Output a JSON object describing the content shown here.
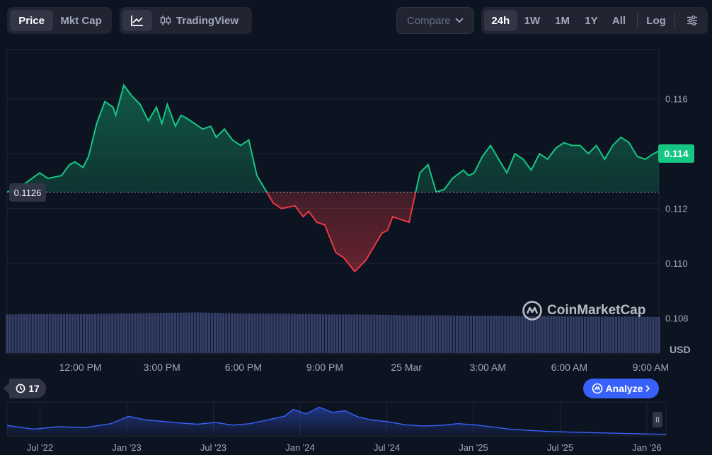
{
  "toolbar": {
    "price_label": "Price",
    "mktcap_label": "Mkt Cap",
    "tradingview_label": "TradingView",
    "compare_label": "Compare",
    "ranges": [
      "24h",
      "1W",
      "1M",
      "1Y",
      "All"
    ],
    "active_range": "24h",
    "log_label": "Log"
  },
  "colors": {
    "background": "#0d1421",
    "up": "#16c784",
    "down": "#ea3943",
    "volume": "#3c4674",
    "overview": "#3861fb"
  },
  "labels": {
    "last_price": "0.114",
    "open_price": "0.1126",
    "currency": "USD",
    "brand": "CoinMarketCap",
    "history_count": "17",
    "analyze": "Analyze"
  },
  "icons": {
    "line_chart": "line-chart-icon",
    "candles": "candlestick-icon",
    "settings": "sliders-icon",
    "history": "history-icon",
    "brand": "coinmarketcap-logo-icon",
    "analyze": "analyze-icon"
  },
  "chart_data": [
    {
      "type": "area",
      "title": "",
      "ylabel": "USD",
      "ylim": [
        0.1067,
        0.1178
      ],
      "yticks": [
        0.108,
        0.11,
        0.112,
        0.114,
        0.116
      ],
      "ytick_labels": [
        "0.108",
        "0.110",
        "0.112",
        "0.114",
        "0.116"
      ],
      "baseline": 0.1126,
      "xlim": [
        0,
        24
      ],
      "xticks": [
        2.7,
        5.7,
        8.7,
        11.7,
        14.7,
        17.7,
        20.7,
        23.7
      ],
      "xtick_labels": [
        "12:00 PM",
        "3:00 PM",
        "6:00 PM",
        "9:00 PM",
        "25 Mar",
        "3:00 AM",
        "6:00 AM",
        "9:00 AM"
      ],
      "grid": true,
      "series": [
        {
          "x": [
            0,
            0.5,
            1.2,
            1.5,
            2.0,
            2.3,
            2.5,
            2.8,
            3.0,
            3.3,
            3.6,
            3.9,
            4.0,
            4.3,
            4.6,
            4.9,
            5.2,
            5.5,
            5.7,
            5.9,
            6.2,
            6.4,
            6.6,
            6.9,
            7.2,
            7.5,
            7.7,
            8.0,
            8.3,
            8.6,
            8.9,
            9.2,
            9.5,
            9.8,
            10.1,
            10.6,
            10.9,
            11.1,
            11.4,
            11.7,
            12.1,
            12.4,
            12.8,
            13.2,
            13.5,
            13.8,
            14.0,
            14.2,
            14.5,
            14.8,
            15.2,
            15.5,
            15.8,
            16.1,
            16.4,
            16.8,
            17.0,
            17.2,
            17.5,
            17.8,
            18.1,
            18.4,
            18.7,
            19.0,
            19.3,
            19.6,
            19.9,
            20.2,
            20.5,
            20.8,
            21.1,
            21.4,
            21.7,
            22.0,
            22.3,
            22.6,
            22.9,
            23.2,
            23.5,
            23.8,
            24.0
          ],
          "y": [
            0.1126,
            0.1128,
            0.1133,
            0.1131,
            0.1132,
            0.1136,
            0.1137,
            0.1135,
            0.1139,
            0.1151,
            0.1159,
            0.1157,
            0.1154,
            0.1165,
            0.1161,
            0.1158,
            0.1152,
            0.1157,
            0.1151,
            0.1158,
            0.115,
            0.1154,
            0.1153,
            0.1151,
            0.1149,
            0.115,
            0.1146,
            0.1149,
            0.1145,
            0.1143,
            0.1145,
            0.1132,
            0.1127,
            0.1122,
            0.112,
            0.1121,
            0.1117,
            0.1119,
            0.1115,
            0.1114,
            0.1104,
            0.1102,
            0.1097,
            0.1101,
            0.1106,
            0.1111,
            0.1112,
            0.1117,
            0.1116,
            0.1115,
            0.1133,
            0.1136,
            0.1126,
            0.1127,
            0.1131,
            0.1134,
            0.1132,
            0.1133,
            0.1139,
            0.1143,
            0.1138,
            0.1133,
            0.114,
            0.1138,
            0.1134,
            0.114,
            0.1138,
            0.1142,
            0.1144,
            0.1143,
            0.1143,
            0.114,
            0.1143,
            0.1138,
            0.1143,
            0.1146,
            0.1144,
            0.1139,
            0.1138,
            0.114,
            0.1141
          ]
        }
      ]
    },
    {
      "type": "bar",
      "title": "",
      "xlim": [
        0,
        24
      ],
      "x": [
        0,
        1,
        2,
        3,
        4,
        5,
        6,
        7,
        8,
        9,
        10,
        11,
        12,
        13,
        14,
        15,
        16,
        17,
        18,
        19,
        20,
        21,
        22,
        23,
        24
      ],
      "values": [
        0.91,
        0.92,
        0.92,
        0.92,
        0.93,
        0.94,
        0.95,
        0.96,
        0.94,
        0.93,
        0.93,
        0.92,
        0.91,
        0.91,
        0.9,
        0.89,
        0.89,
        0.88,
        0.88,
        0.87,
        0.87,
        0.86,
        0.86,
        0.86,
        0.85
      ]
    },
    {
      "type": "area",
      "title": "",
      "xticks": [
        0,
        1,
        2,
        3,
        4,
        5,
        6,
        7
      ],
      "xtick_labels": [
        "Jul '22",
        "Jan '23",
        "Jul '23",
        "Jan '24",
        "Jul '24",
        "Jan '25",
        "Jul '25",
        "Jan '26"
      ],
      "xlim": [
        -0.2,
        7.4
      ],
      "series": [
        {
          "x": [
            -0.2,
            0.1,
            0.4,
            0.7,
            1.0,
            1.2,
            1.4,
            1.6,
            1.8,
            2.0,
            2.2,
            2.4,
            2.6,
            2.8,
            3.0,
            3.1,
            3.25,
            3.4,
            3.55,
            3.7,
            3.85,
            4.0,
            4.2,
            4.4,
            4.6,
            4.8,
            5.0,
            5.2,
            5.4,
            5.6,
            5.8,
            6.0,
            6.3,
            6.6,
            6.9,
            7.2,
            7.4
          ],
          "values": [
            0.32,
            0.2,
            0.28,
            0.25,
            0.38,
            0.62,
            0.5,
            0.45,
            0.4,
            0.36,
            0.42,
            0.33,
            0.38,
            0.5,
            0.62,
            0.85,
            0.7,
            0.92,
            0.75,
            0.8,
            0.6,
            0.5,
            0.44,
            0.34,
            0.3,
            0.32,
            0.38,
            0.34,
            0.27,
            0.2,
            0.16,
            0.13,
            0.1,
            0.08,
            0.06,
            0.04,
            0.03
          ]
        }
      ]
    }
  ]
}
